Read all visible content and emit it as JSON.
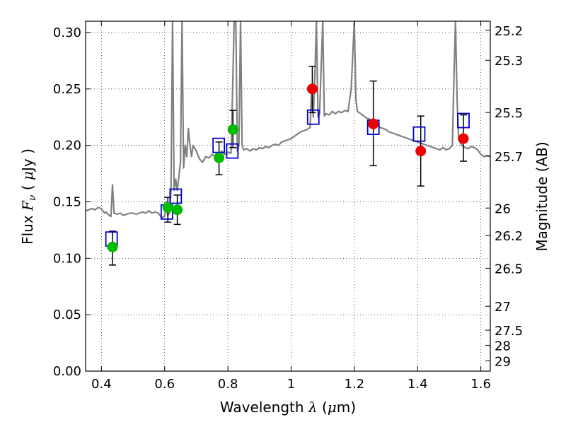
{
  "chart_data": {
    "type": "scatter",
    "xlabel": "Wavelength  λ (μm)",
    "ylabel": "Flux  Fν  ( μJy )",
    "ylabel_right": "Magnitude (AB)",
    "xlim": [
      0.35,
      1.63
    ],
    "ylim": [
      0.0,
      0.31
    ],
    "grid": true,
    "x_ticks": [
      0.4,
      0.6,
      0.8,
      1.0,
      1.2,
      1.4,
      1.6
    ],
    "x_tick_labels": [
      "0.4",
      "0.6",
      "0.8",
      "1",
      "1.2",
      "1.4",
      "1.6"
    ],
    "y_ticks": [
      0.0,
      0.05,
      0.1,
      0.15,
      0.2,
      0.25,
      0.3
    ],
    "y_tick_labels": [
      "0.00",
      "0.05",
      "0.10",
      "0.15",
      "0.20",
      "0.25",
      "0.30"
    ],
    "right_ticks": [
      {
        "flux": 0.302,
        "label": "25.2"
      },
      {
        "flux": 0.2754,
        "label": "25.3"
      },
      {
        "flux": 0.2291,
        "label": "25.5"
      },
      {
        "flux": 0.1905,
        "label": "25.7"
      },
      {
        "flux": 0.1445,
        "label": "26"
      },
      {
        "flux": 0.1202,
        "label": "26.2"
      },
      {
        "flux": 0.0912,
        "label": "26.5"
      },
      {
        "flux": 0.0575,
        "label": "27"
      },
      {
        "flux": 0.0363,
        "label": "27.5"
      },
      {
        "flux": 0.0229,
        "label": "28"
      },
      {
        "flux": 0.0091,
        "label": "29"
      }
    ],
    "series": [
      {
        "type": "line",
        "color": "#808080",
        "points": [
          [
            0.35,
            0.142
          ],
          [
            0.37,
            0.144
          ],
          [
            0.38,
            0.143
          ],
          [
            0.39,
            0.145
          ],
          [
            0.4,
            0.144
          ],
          [
            0.41,
            0.14
          ],
          [
            0.415,
            0.141
          ],
          [
            0.42,
            0.139
          ],
          [
            0.43,
            0.137
          ],
          [
            0.435,
            0.165
          ],
          [
            0.44,
            0.14
          ],
          [
            0.45,
            0.139
          ],
          [
            0.46,
            0.14
          ],
          [
            0.47,
            0.138
          ],
          [
            0.48,
            0.139
          ],
          [
            0.49,
            0.14
          ],
          [
            0.5,
            0.14
          ],
          [
            0.51,
            0.139
          ],
          [
            0.52,
            0.14
          ],
          [
            0.53,
            0.141
          ],
          [
            0.54,
            0.14
          ],
          [
            0.55,
            0.142
          ],
          [
            0.56,
            0.14
          ],
          [
            0.57,
            0.141
          ],
          [
            0.58,
            0.14
          ],
          [
            0.59,
            0.136
          ],
          [
            0.6,
            0.137
          ],
          [
            0.605,
            0.15
          ],
          [
            0.61,
            0.138
          ],
          [
            0.615,
            0.14
          ],
          [
            0.62,
            0.16
          ],
          [
            0.625,
            0.31
          ],
          [
            0.63,
            0.16
          ],
          [
            0.635,
            0.17
          ],
          [
            0.64,
            0.16
          ],
          [
            0.65,
            0.185
          ],
          [
            0.655,
            0.31
          ],
          [
            0.66,
            0.18
          ],
          [
            0.665,
            0.2
          ],
          [
            0.67,
            0.19
          ],
          [
            0.675,
            0.215
          ],
          [
            0.68,
            0.2
          ],
          [
            0.685,
            0.19
          ],
          [
            0.69,
            0.2
          ],
          [
            0.7,
            0.195
          ],
          [
            0.71,
            0.188
          ],
          [
            0.72,
            0.185
          ],
          [
            0.73,
            0.19
          ],
          [
            0.74,
            0.189
          ],
          [
            0.75,
            0.192
          ],
          [
            0.76,
            0.19
          ],
          [
            0.77,
            0.191
          ],
          [
            0.78,
            0.195
          ],
          [
            0.79,
            0.192
          ],
          [
            0.8,
            0.194
          ],
          [
            0.81,
            0.193
          ],
          [
            0.815,
            0.25
          ],
          [
            0.82,
            0.31
          ],
          [
            0.825,
            0.31
          ],
          [
            0.83,
            0.195
          ],
          [
            0.835,
            0.2
          ],
          [
            0.84,
            0.31
          ],
          [
            0.845,
            0.2
          ],
          [
            0.85,
            0.196
          ],
          [
            0.86,
            0.197
          ],
          [
            0.87,
            0.195
          ],
          [
            0.88,
            0.197
          ],
          [
            0.89,
            0.196
          ],
          [
            0.9,
            0.198
          ],
          [
            0.91,
            0.197
          ],
          [
            0.92,
            0.199
          ],
          [
            0.93,
            0.198
          ],
          [
            0.94,
            0.2
          ],
          [
            0.95,
            0.201
          ],
          [
            0.96,
            0.2
          ],
          [
            0.97,
            0.203
          ],
          [
            0.98,
            0.204
          ],
          [
            0.99,
            0.205
          ],
          [
            1.0,
            0.206
          ],
          [
            1.01,
            0.208
          ],
          [
            1.02,
            0.21
          ],
          [
            1.03,
            0.212
          ],
          [
            1.04,
            0.213
          ],
          [
            1.05,
            0.214
          ],
          [
            1.06,
            0.216
          ],
          [
            1.065,
            0.25
          ],
          [
            1.07,
            0.225
          ],
          [
            1.075,
            0.26
          ],
          [
            1.08,
            0.31
          ],
          [
            1.085,
            0.225
          ],
          [
            1.09,
            0.228
          ],
          [
            1.1,
            0.31
          ],
          [
            1.105,
            0.226
          ],
          [
            1.11,
            0.228
          ],
          [
            1.12,
            0.227
          ],
          [
            1.13,
            0.23
          ],
          [
            1.14,
            0.228
          ],
          [
            1.15,
            0.23
          ],
          [
            1.16,
            0.229
          ],
          [
            1.17,
            0.231
          ],
          [
            1.18,
            0.23
          ],
          [
            1.19,
            0.25
          ],
          [
            1.2,
            0.31
          ],
          [
            1.205,
            0.24
          ],
          [
            1.21,
            0.23
          ],
          [
            1.22,
            0.228
          ],
          [
            1.23,
            0.226
          ],
          [
            1.24,
            0.224
          ],
          [
            1.25,
            0.223
          ],
          [
            1.26,
            0.22
          ],
          [
            1.27,
            0.218
          ],
          [
            1.28,
            0.216
          ],
          [
            1.29,
            0.215
          ],
          [
            1.3,
            0.214
          ],
          [
            1.31,
            0.212
          ],
          [
            1.32,
            0.211
          ],
          [
            1.33,
            0.21
          ],
          [
            1.34,
            0.209
          ],
          [
            1.35,
            0.208
          ],
          [
            1.36,
            0.207
          ],
          [
            1.37,
            0.206
          ],
          [
            1.38,
            0.205
          ],
          [
            1.39,
            0.204
          ],
          [
            1.4,
            0.203
          ],
          [
            1.41,
            0.202
          ],
          [
            1.42,
            0.201
          ],
          [
            1.43,
            0.2
          ],
          [
            1.44,
            0.199
          ],
          [
            1.45,
            0.198
          ],
          [
            1.46,
            0.197
          ],
          [
            1.47,
            0.196
          ],
          [
            1.48,
            0.198
          ],
          [
            1.49,
            0.196
          ],
          [
            1.5,
            0.197
          ],
          [
            1.51,
            0.2
          ],
          [
            1.515,
            0.26
          ],
          [
            1.52,
            0.31
          ],
          [
            1.525,
            0.24
          ],
          [
            1.53,
            0.205
          ],
          [
            1.54,
            0.2
          ],
          [
            1.55,
            0.198
          ],
          [
            1.56,
            0.197
          ],
          [
            1.57,
            0.199
          ],
          [
            1.58,
            0.198
          ],
          [
            1.59,
            0.196
          ],
          [
            1.6,
            0.192
          ],
          [
            1.61,
            0.19
          ],
          [
            1.62,
            0.191
          ],
          [
            1.63,
            0.19
          ]
        ]
      },
      {
        "type": "marker",
        "marker": "square",
        "color": "#0000cc",
        "points": [
          [
            0.432,
            0.117
          ],
          [
            0.607,
            0.141
          ],
          [
            0.635,
            0.155
          ],
          [
            0.771,
            0.2
          ],
          [
            0.814,
            0.195
          ],
          [
            1.07,
            0.225
          ],
          [
            1.26,
            0.216
          ],
          [
            1.405,
            0.21
          ],
          [
            1.545,
            0.222
          ]
        ]
      },
      {
        "type": "marker",
        "marker": "circle",
        "color": "#00bb00",
        "points": [
          [
            0.435,
            0.11
          ],
          [
            0.61,
            0.145
          ],
          [
            0.64,
            0.143
          ],
          [
            0.772,
            0.189
          ],
          [
            0.816,
            0.214
          ]
        ]
      },
      {
        "type": "marker",
        "marker": "circle",
        "color": "#ee0000",
        "points": [
          [
            1.067,
            0.25
          ],
          [
            1.26,
            0.219
          ],
          [
            1.41,
            0.195
          ],
          [
            1.545,
            0.206
          ]
        ]
      },
      {
        "type": "errorbar",
        "color": "#000000",
        "bars": [
          {
            "x": 0.435,
            "y0": 0.094,
            "y1": 0.124
          },
          {
            "x": 0.61,
            "y0": 0.132,
            "y1": 0.154
          },
          {
            "x": 0.64,
            "y0": 0.13,
            "y1": 0.156
          },
          {
            "x": 0.772,
            "y0": 0.174,
            "y1": 0.203
          },
          {
            "x": 0.816,
            "y0": 0.198,
            "y1": 0.231
          },
          {
            "x": 1.067,
            "y0": 0.229,
            "y1": 0.27
          },
          {
            "x": 1.26,
            "y0": 0.182,
            "y1": 0.257
          },
          {
            "x": 1.41,
            "y0": 0.164,
            "y1": 0.226
          },
          {
            "x": 1.545,
            "y0": 0.186,
            "y1": 0.227
          }
        ]
      }
    ]
  }
}
